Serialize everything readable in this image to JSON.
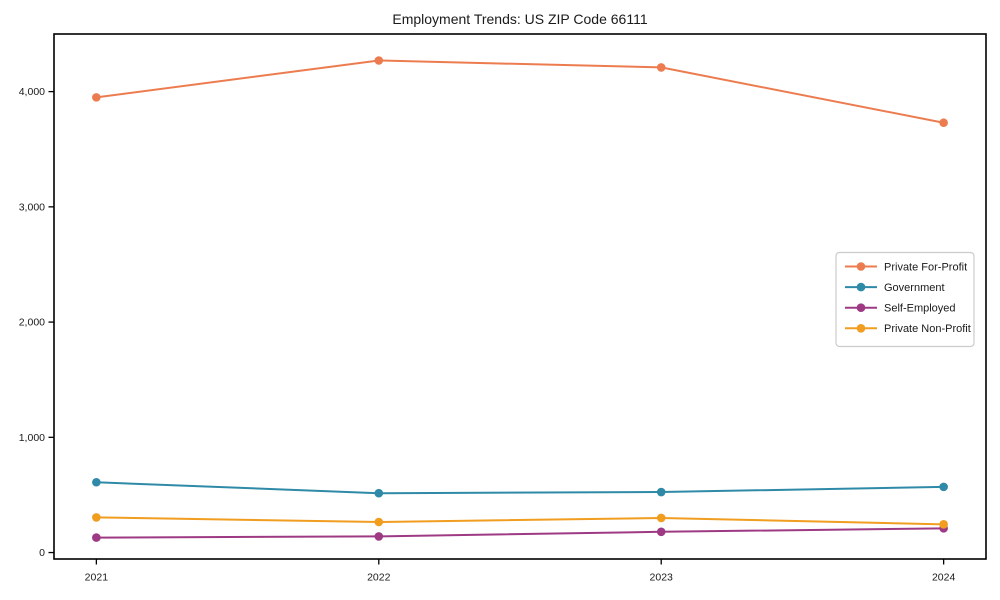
{
  "chart_data": {
    "type": "line",
    "title": "Employment Trends: US ZIP Code 66111",
    "categories": [
      "2021",
      "2022",
      "2023",
      "2024"
    ],
    "series": [
      {
        "name": "Private For-Profit",
        "color": "#ec7c4f",
        "values": [
          3950,
          4270,
          4210,
          3730
        ]
      },
      {
        "name": "Government",
        "color": "#2f8aa8",
        "values": [
          610,
          515,
          525,
          570
        ]
      },
      {
        "name": "Self-Employed",
        "color": "#9e3a83",
        "values": [
          130,
          140,
          180,
          210
        ]
      },
      {
        "name": "Private Non-Profit",
        "color": "#f09d20",
        "values": [
          305,
          265,
          300,
          245
        ]
      }
    ],
    "xlabel": "",
    "ylabel": "",
    "y_ticks": [
      0,
      1000,
      2000,
      3000,
      4000
    ],
    "y_tick_labels": [
      "0",
      "1,000",
      "2,000",
      "3,000",
      "4,000"
    ],
    "ylim": [
      -56,
      4500
    ],
    "grid": false,
    "legend": {
      "position": "center-right"
    },
    "style": {
      "axis_color": "#000000",
      "text_color": "#1a1a1a",
      "legend_border_color": "#cccccc",
      "background": "#ffffff"
    }
  }
}
